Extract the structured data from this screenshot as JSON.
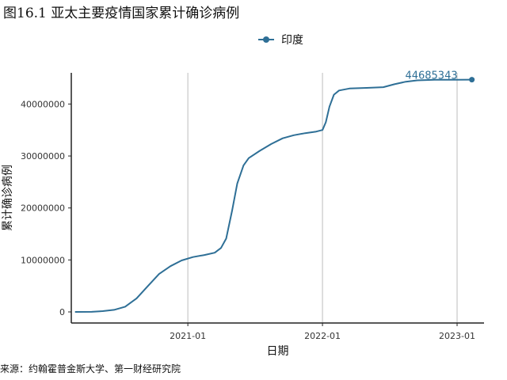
{
  "chart_data": {
    "type": "line",
    "title": "图16.1 亚太主要疫情国家累计确诊病例",
    "xlabel": "日期",
    "ylabel": "累计确诊病例",
    "x_ticks": [
      "2021-01",
      "2022-01",
      "2023-01"
    ],
    "y_ticks": [
      0,
      10000000,
      20000000,
      30000000,
      40000000
    ],
    "y_tick_labels": [
      "0",
      "10000000",
      "20000000",
      "30000000",
      "40000000"
    ],
    "ylim": [
      0,
      46000000
    ],
    "xlim": [
      "2020-02-20",
      "2023-03-15"
    ],
    "grid": "vertical major",
    "legend_position": "top",
    "series": [
      {
        "name": "印度",
        "color": "#2e6f96",
        "end_label": "44685343",
        "points": [
          {
            "x": "2020-03-01",
            "y": 0
          },
          {
            "x": "2020-04-15",
            "y": 20000
          },
          {
            "x": "2020-05-15",
            "y": 150000
          },
          {
            "x": "2020-06-15",
            "y": 400000
          },
          {
            "x": "2020-07-15",
            "y": 1000000
          },
          {
            "x": "2020-08-15",
            "y": 2600000
          },
          {
            "x": "2020-09-15",
            "y": 5000000
          },
          {
            "x": "2020-10-15",
            "y": 7300000
          },
          {
            "x": "2020-11-15",
            "y": 8800000
          },
          {
            "x": "2020-12-15",
            "y": 9900000
          },
          {
            "x": "2021-01-15",
            "y": 10550000
          },
          {
            "x": "2021-02-15",
            "y": 10950000
          },
          {
            "x": "2021-03-15",
            "y": 11400000
          },
          {
            "x": "2021-04-01",
            "y": 12300000
          },
          {
            "x": "2021-04-15",
            "y": 14100000
          },
          {
            "x": "2021-05-01",
            "y": 19500000
          },
          {
            "x": "2021-05-15",
            "y": 24700000
          },
          {
            "x": "2021-06-01",
            "y": 28200000
          },
          {
            "x": "2021-06-15",
            "y": 29600000
          },
          {
            "x": "2021-07-15",
            "y": 31000000
          },
          {
            "x": "2021-08-15",
            "y": 32300000
          },
          {
            "x": "2021-09-15",
            "y": 33400000
          },
          {
            "x": "2021-10-15",
            "y": 34000000
          },
          {
            "x": "2021-11-15",
            "y": 34400000
          },
          {
            "x": "2021-12-15",
            "y": 34700000
          },
          {
            "x": "2022-01-01",
            "y": 35000000
          },
          {
            "x": "2022-01-10",
            "y": 36500000
          },
          {
            "x": "2022-01-20",
            "y": 39500000
          },
          {
            "x": "2022-02-01",
            "y": 41800000
          },
          {
            "x": "2022-02-15",
            "y": 42600000
          },
          {
            "x": "2022-03-15",
            "y": 42980000
          },
          {
            "x": "2022-05-01",
            "y": 43100000
          },
          {
            "x": "2022-06-15",
            "y": 43250000
          },
          {
            "x": "2022-07-15",
            "y": 43800000
          },
          {
            "x": "2022-08-15",
            "y": 44300000
          },
          {
            "x": "2022-09-15",
            "y": 44550000
          },
          {
            "x": "2022-11-01",
            "y": 44660000
          },
          {
            "x": "2023-01-01",
            "y": 44680000
          },
          {
            "x": "2023-02-10",
            "y": 44685343
          }
        ]
      }
    ]
  },
  "source_note": "来源：约翰霍普金斯大学、第一财经研究院"
}
